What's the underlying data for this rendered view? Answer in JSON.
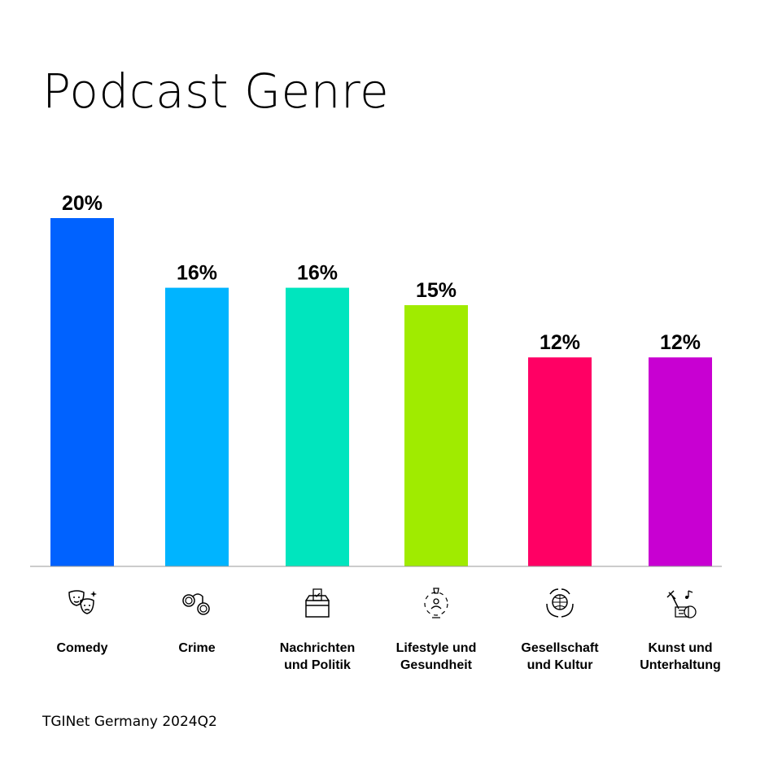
{
  "chart_data": {
    "type": "bar",
    "title": "Podcast Genre",
    "categories": [
      "Comedy",
      "Crime",
      "Nachrichten und Politik",
      "Lifestyle und Gesundheit",
      "Gesellschaft und Kultur",
      "Kunst und Unterhaltung"
    ],
    "category_lines": [
      [
        "Comedy"
      ],
      [
        "Crime"
      ],
      [
        "Nachrichten",
        "und Politik"
      ],
      [
        "Lifestyle und",
        "Gesundheit"
      ],
      [
        "Gesellschaft",
        "und Kultur"
      ],
      [
        "Kunst und",
        "Unterhaltung"
      ]
    ],
    "values": [
      20,
      16,
      16,
      15,
      12,
      12
    ],
    "data_labels": [
      "20%",
      "16%",
      "16%",
      "15%",
      "12%",
      "12%"
    ],
    "colors": [
      "#0062FF",
      "#00B4FF",
      "#00E5BE",
      "#A0EB00",
      "#FF0064",
      "#C800D2"
    ],
    "icons": [
      "theater-masks-icon",
      "handcuffs-icon",
      "ballot-box-icon",
      "lifestyle-health-icon",
      "globe-hands-icon",
      "art-music-icon"
    ],
    "xlabel": "",
    "ylabel": "",
    "ylim": [
      0,
      20
    ],
    "grid": false
  },
  "footer": "TGINet Germany 2024Q2"
}
